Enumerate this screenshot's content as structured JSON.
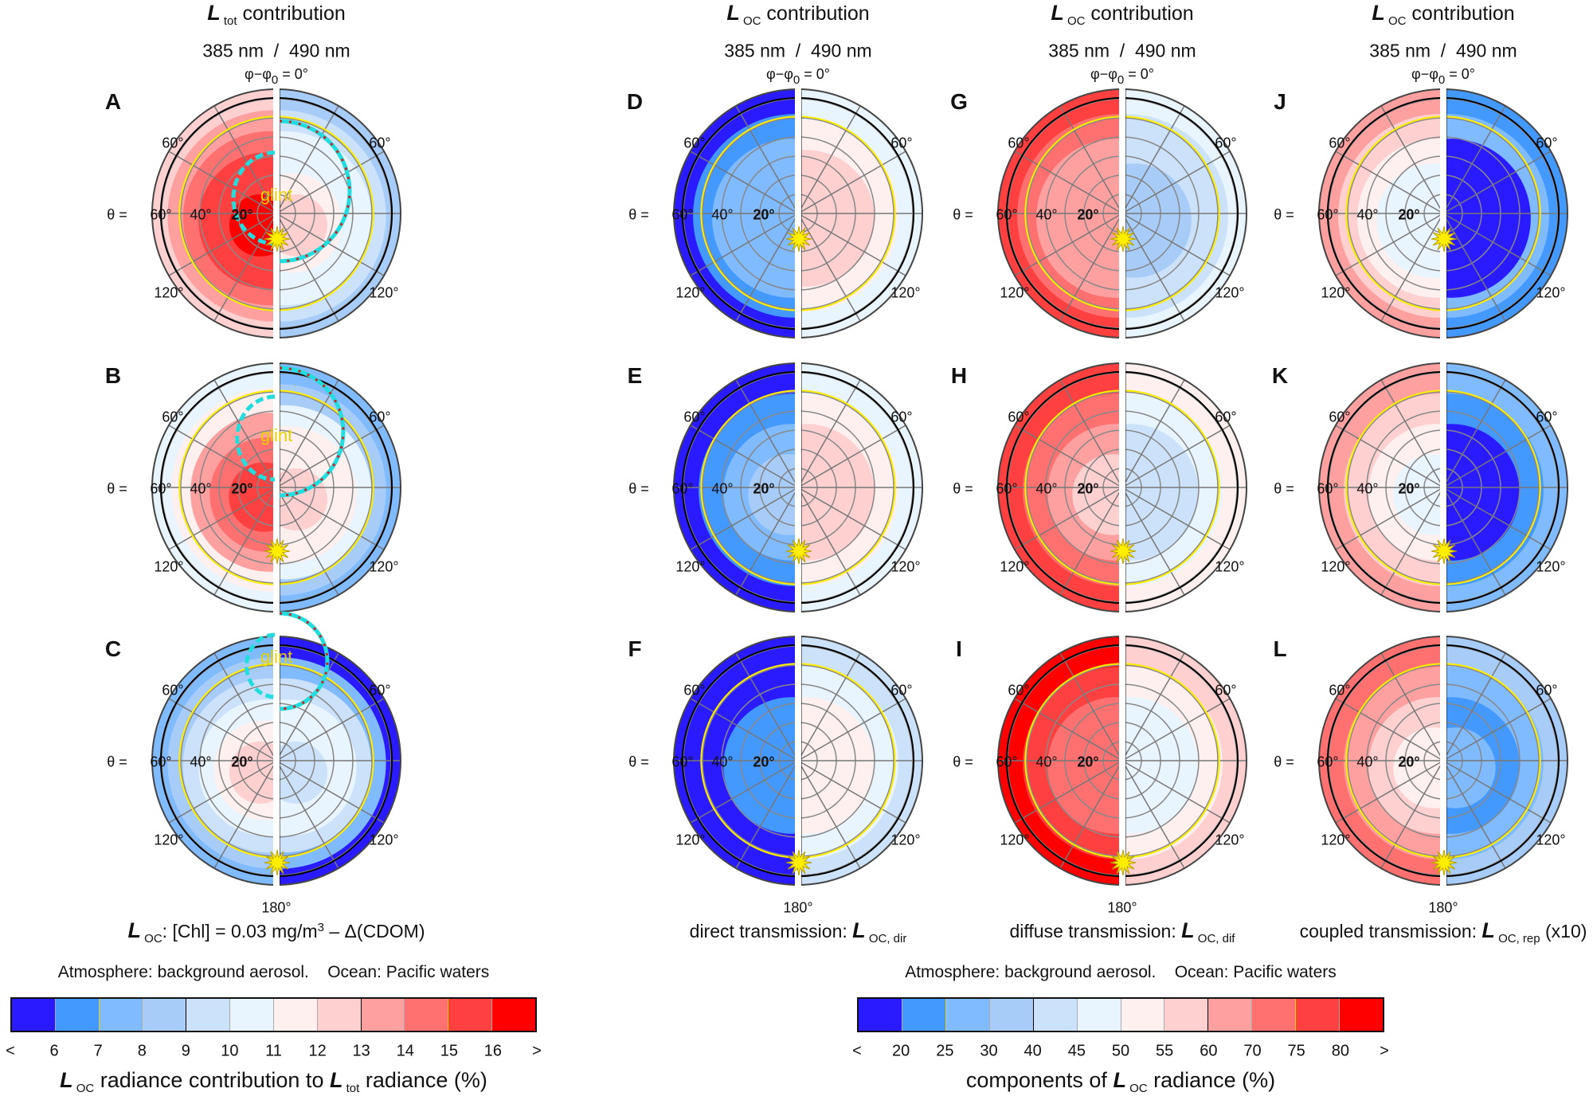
{
  "chart_data": {
    "type": "heatmap",
    "subtype": "polar",
    "columns": [
      {
        "title_main": "L",
        "title_sub": "tot",
        "title_rest": " contribution",
        "wavelengths": "385 nm  /  490 nm",
        "azimuth_label": "φ−φ",
        "azimuth_sub": "0",
        "azimuth_rest": " = 0°",
        "caption": {
          "L": "L",
          "sub": "OC",
          "text": ": [Chl] = 0.03 mg/m",
          "sup": "3",
          "tail": " – Δ(CDOM)"
        },
        "colorbar": 0
      },
      {
        "title_main": "L",
        "title_sub": "OC",
        "title_rest": " contribution",
        "wavelengths": "385 nm  /  490 nm",
        "azimuth_label": "φ−φ",
        "azimuth_sub": "0",
        "azimuth_rest": " = 0°",
        "caption": {
          "text": "direct transmission: ",
          "L": "L",
          "sub": "OC, dir",
          "tail": ""
        },
        "colorbar": 1
      },
      {
        "title_main": "L",
        "title_sub": "OC",
        "title_rest": " contribution",
        "wavelengths": "385 nm  /  490 nm",
        "azimuth_label": "φ−φ",
        "azimuth_sub": "0",
        "azimuth_rest": " = 0°",
        "caption": {
          "text": "diffuse transmission: ",
          "L": "L",
          "sub": "OC, dif",
          "tail": ""
        },
        "colorbar": 1
      },
      {
        "title_main": "L",
        "title_sub": "OC",
        "title_rest": " contribution",
        "wavelengths": "385 nm  /  490 nm",
        "azimuth_label": "φ−φ",
        "azimuth_sub": "0",
        "azimuth_rest": " = 0°",
        "caption": {
          "text": "coupled transmission: ",
          "L": "L",
          "sub": "OC, rep",
          "tail": " (x10)"
        },
        "colorbar": 1
      }
    ],
    "panels": [
      {
        "label": "A",
        "col": 0,
        "row": 0,
        "glint": "glint",
        "left_bins": [
          7,
          8,
          9,
          10,
          10,
          11
        ],
        "right_bins": [
          3,
          4,
          5,
          5,
          6,
          7
        ]
      },
      {
        "label": "B",
        "col": 0,
        "row": 1,
        "glint": "glint",
        "left_bins": [
          5,
          6,
          8,
          9,
          10
        ],
        "right_bins": [
          2,
          3,
          5,
          6,
          6,
          7
        ]
      },
      {
        "label": "C",
        "col": 0,
        "row": 2,
        "glint": "glint",
        "left_bins": [
          2,
          3,
          4,
          5,
          6,
          7
        ],
        "right_bins": [
          0,
          2,
          4,
          5,
          5,
          4
        ]
      },
      {
        "label": "D",
        "col": 1,
        "row": 0,
        "left_bins": [
          0,
          1,
          2,
          2,
          2
        ],
        "right_bins": [
          5,
          6,
          7,
          7
        ]
      },
      {
        "label": "E",
        "col": 1,
        "row": 1,
        "left_bins": [
          0,
          1,
          2,
          3
        ],
        "right_bins": [
          5,
          6,
          7,
          7
        ]
      },
      {
        "label": "F",
        "col": 1,
        "row": 2,
        "left_bins": [
          0,
          0,
          1,
          1
        ],
        "right_bins": [
          4,
          5,
          6,
          6
        ]
      },
      {
        "label": "G",
        "col": 2,
        "row": 0,
        "left_bins": [
          10,
          9,
          8,
          8,
          8
        ],
        "right_bins": [
          5,
          4,
          4,
          3,
          3
        ]
      },
      {
        "label": "H",
        "col": 2,
        "row": 1,
        "left_bins": [
          10,
          9,
          8,
          7
        ],
        "right_bins": [
          6,
          5,
          4,
          4
        ]
      },
      {
        "label": "I",
        "col": 2,
        "row": 2,
        "left_bins": [
          11,
          10,
          9,
          9
        ],
        "right_bins": [
          7,
          6,
          5,
          5
        ]
      },
      {
        "label": "J",
        "col": 3,
        "row": 0,
        "left_bins": [
          8,
          7,
          6,
          5,
          5
        ],
        "right_bins": [
          1,
          2,
          0,
          0,
          0
        ]
      },
      {
        "label": "K",
        "col": 3,
        "row": 1,
        "left_bins": [
          8,
          7,
          6,
          5
        ],
        "right_bins": [
          2,
          1,
          0,
          0
        ]
      },
      {
        "label": "L",
        "col": 3,
        "row": 2,
        "left_bins": [
          9,
          8,
          7,
          6
        ],
        "right_bins": [
          3,
          2,
          1,
          2
        ]
      }
    ],
    "polar_labels": {
      "theta_prefix": "θ =",
      "theta_60": "60°",
      "theta_40": "40°",
      "theta_20": "20°",
      "az_60": "60°",
      "az_120": "120°",
      "az_180": "180°"
    },
    "colorbars": [
      {
        "header": "Atmosphere: background aerosol.    Ocean: Pacific waters",
        "ticks": [
          "<",
          "6",
          "7",
          "8",
          "9",
          "10",
          "11",
          "12",
          "13",
          "14",
          "15",
          "16",
          ">"
        ],
        "title": {
          "L1": "L",
          "s1": "OC",
          "mid": " radiance contribution to ",
          "L2": "L",
          "s2": "tot",
          "tail": " radiance (%)"
        }
      },
      {
        "header": "Atmosphere: background aerosol.    Ocean: Pacific waters",
        "ticks": [
          "<",
          "20",
          "25",
          "30",
          "40",
          "45",
          "50",
          "55",
          "60",
          "70",
          "75",
          "80",
          ">"
        ],
        "title": {
          "pre": "components of ",
          "L1": "L",
          "s1": "OC",
          "tail": " radiance (%)"
        }
      }
    ],
    "colors": [
      "#2a1aff",
      "#4499ff",
      "#80bbff",
      "#a8ccf8",
      "#cce2fa",
      "#e8f4fe",
      "#fff0f0",
      "#ffd0d0",
      "#ffa0a0",
      "#ff7070",
      "#ff4040",
      "#ff0000"
    ],
    "contour_colors": {
      "black": "#000000",
      "yellow": "#ffee00",
      "glint_dash": "#22dddd",
      "glint_dot": "#cc2222",
      "sun": "#ffee00"
    }
  }
}
